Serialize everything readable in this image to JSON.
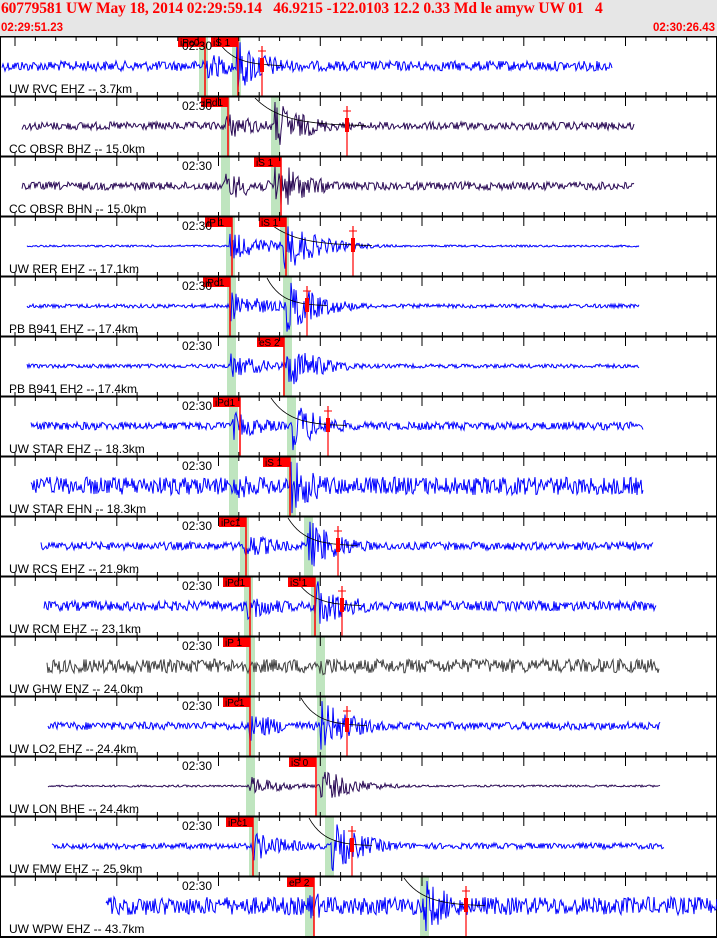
{
  "header": {
    "title": "60779581 UW May 18, 2014 02:29:59.14   46.9215 -122.0103 12.2 0.33 Md le amyw UW 01   4",
    "event_id": "60779581",
    "network": "UW",
    "origin_time": "May 18, 2014 02:29:59.14",
    "latitude": "46.9215",
    "longitude": "-122.0103",
    "depth": "12.2",
    "magnitude": "0.33",
    "mag_type": "Md",
    "type": "le",
    "analyst": "amyw",
    "version": "UW 01",
    "extra": "4",
    "start_time": "02:29:51.23",
    "end_time": "02:30:26.43"
  },
  "colors": {
    "header_bg": "#e6e6e6",
    "title": "#ff0000",
    "pick": "#ff0000",
    "window": "#bfe5bf",
    "trace_blue": "#0000ff",
    "trace_purple": "#2a0a55",
    "trace_gray": "#404040",
    "axis": "#000000"
  },
  "chart_data": {
    "type": "line",
    "title": "60779581 UW May 18, 2014 02:29:59.14 46.9215 -122.0103 12.2 0.33 Md le amyw UW 01 4",
    "xlabel": "time",
    "ylabel": "",
    "x_range": [
      "02:29:51.23",
      "02:30:26.43"
    ],
    "tick_label": "02:30",
    "grid": false,
    "legend": "none",
    "traces": [
      {
        "label": "UW RVC EHZ -- 3.7km",
        "color": "#0000ff",
        "xs": 2,
        "xe": 612,
        "amp": 5,
        "quake_amp": 28,
        "picks": [
          {
            "label": "iPc0",
            "x": 205
          },
          {
            "label": "iS 1",
            "x": 238
          }
        ],
        "winP": 199,
        "winS": 232,
        "coda": 262
      },
      {
        "label": "CC OBSR BHZ -- 15.0km",
        "color": "#2a0a55",
        "xs": 22,
        "xe": 634,
        "amp": 4,
        "quake_amp": 26,
        "picks": [
          {
            "label": "iPd1",
            "x": 228
          }
        ],
        "winP": 221,
        "winS": 271,
        "coda": 347
      },
      {
        "label": "CC OBSR BHN -- 15.0km",
        "color": "#2a0a55",
        "xs": 22,
        "xe": 634,
        "amp": 4,
        "quake_amp": 28,
        "picks": [
          {
            "label": "iS 1",
            "x": 281
          }
        ],
        "winP": 221,
        "winS": 271,
        "coda": 0
      },
      {
        "label": "UW RER EHZ -- 17.1km",
        "color": "#0000ff",
        "xs": 27,
        "xe": 639,
        "amp": 1,
        "quake_amp": 27,
        "picks": [
          {
            "label": "iP 1",
            "x": 232
          },
          {
            "label": "iS 1",
            "x": 286
          }
        ],
        "winP": 226,
        "winS": 280,
        "coda": 353
      },
      {
        "label": "PB B941 EHZ -- 17.4km",
        "color": "#0000ff",
        "xs": 27,
        "xe": 639,
        "amp": 2,
        "quake_amp": 28,
        "picks": [
          {
            "label": "iPc1",
            "x": 230
          }
        ],
        "winP": 227,
        "winS": 283,
        "coda": 307
      },
      {
        "label": "PB B941 EH2 -- 17.4km",
        "color": "#0000ff",
        "xs": 27,
        "xe": 639,
        "amp": 2,
        "quake_amp": 24,
        "picks": [
          {
            "label": "eS 2",
            "x": 284
          }
        ],
        "winP": 227,
        "winS": 283,
        "coda": 0
      },
      {
        "label": "UW STAR EHZ -- 18.3km",
        "color": "#0000ff",
        "xs": 31,
        "xe": 643,
        "amp": 4,
        "quake_amp": 26,
        "picks": [
          {
            "label": "iPd1",
            "x": 240
          }
        ],
        "winP": 229,
        "winS": 287,
        "coda": 328
      },
      {
        "label": "UW STAR EHN -- 18.3km",
        "color": "#0000ff",
        "xs": 31,
        "xe": 643,
        "amp": 9,
        "quake_amp": 28,
        "picks": [
          {
            "label": "iS 1",
            "x": 290
          }
        ],
        "winP": 229,
        "winS": 287,
        "coda": 0
      },
      {
        "label": "UW RCS EHZ -- 21.9km",
        "color": "#0000ff",
        "xs": 41,
        "xe": 653,
        "amp": 4,
        "quake_amp": 27,
        "picks": [
          {
            "label": "iPc1",
            "x": 246
          }
        ],
        "winP": 240,
        "winS": 304,
        "coda": 338
      },
      {
        "label": "UW RCM EHZ -- 23.1km",
        "color": "#0000ff",
        "xs": 44,
        "xe": 656,
        "amp": 5,
        "quake_amp": 27,
        "picks": [
          {
            "label": "iPd1",
            "x": 250
          },
          {
            "label": "iS 1",
            "x": 315
          }
        ],
        "winP": 244,
        "winS": 311,
        "coda": 342
      },
      {
        "label": "UW GHW ENZ -- 24.0km",
        "color": "#404040",
        "xs": 47,
        "xe": 659,
        "amp": 7,
        "quake_amp": 12,
        "picks": [
          {
            "label": "iP 1",
            "x": 250
          }
        ],
        "winP": 246,
        "winS": 316,
        "coda": 0
      },
      {
        "label": "UW LO2 EHZ -- 24.4km",
        "color": "#0000ff",
        "xs": 48,
        "xe": 660,
        "amp": 4,
        "quake_amp": 27,
        "picks": [
          {
            "label": "iPc1",
            "x": 250
          }
        ],
        "winP": 246,
        "winS": 317,
        "coda": 347
      },
      {
        "label": "UW LON BHE -- 24.4km",
        "color": "#2a0a55",
        "xs": 48,
        "xe": 660,
        "amp": 1,
        "quake_amp": 18,
        "picks": [
          {
            "label": "iS 0",
            "x": 316
          }
        ],
        "winP": 246,
        "winS": 317,
        "coda": 0
      },
      {
        "label": "UW FMW EHZ -- 25.9km",
        "color": "#0000ff",
        "xs": 52,
        "xe": 664,
        "amp": 3,
        "quake_amp": 28,
        "picks": [
          {
            "label": "iPc1",
            "x": 253
          }
        ],
        "winP": 249,
        "winS": 325,
        "coda": 352
      },
      {
        "label": "UW WPW EHZ -- 43.7km",
        "color": "#0000ff",
        "xs": 106,
        "xe": 717,
        "amp": 9,
        "quake_amp": 28,
        "picks": [
          {
            "label": "eP 2",
            "x": 314
          }
        ],
        "winP": 305,
        "winS": 420,
        "coda": 466
      }
    ]
  }
}
